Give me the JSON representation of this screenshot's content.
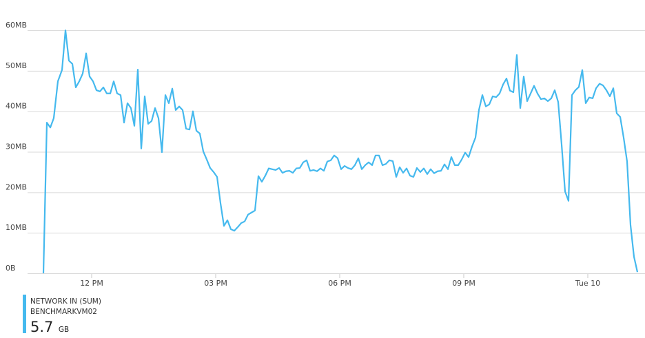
{
  "chart_data": {
    "type": "line",
    "xlim": [
      587,
      1523
    ],
    "ylim": [
      0,
      60
    ],
    "grid": true,
    "xticks": [
      {
        "value": 720,
        "label": "12 PM"
      },
      {
        "value": 900,
        "label": "03 PM"
      },
      {
        "value": 1080,
        "label": "06 PM"
      },
      {
        "value": 1260,
        "label": "09 PM"
      },
      {
        "value": 1440,
        "label": "Tue 10"
      }
    ],
    "yticks": [
      {
        "value": 0,
        "label": "0B"
      },
      {
        "value": 10,
        "label": "10MB"
      },
      {
        "value": 20,
        "label": "20MB"
      },
      {
        "value": 30,
        "label": "30MB"
      },
      {
        "value": 40,
        "label": "40MB"
      },
      {
        "value": 50,
        "label": "50MB"
      },
      {
        "value": 60,
        "label": "60MB"
      }
    ],
    "x": [
      650,
      655,
      660,
      665,
      671,
      677,
      682,
      687,
      692,
      697,
      702,
      707,
      712,
      717,
      722,
      727,
      732,
      737,
      742,
      747,
      752,
      757,
      762,
      767,
      772,
      777,
      782,
      787,
      792,
      797,
      802,
      807,
      812,
      817,
      822,
      827,
      832,
      837,
      842,
      847,
      852,
      857,
      862,
      867,
      872,
      877,
      882,
      887,
      892,
      897,
      902,
      907,
      912,
      917,
      922,
      927,
      932,
      937,
      942,
      947,
      952,
      957,
      962,
      967,
      972,
      977,
      982,
      987,
      992,
      997,
      1002,
      1007,
      1012,
      1017,
      1022,
      1027,
      1032,
      1037,
      1042,
      1047,
      1052,
      1057,
      1062,
      1067,
      1072,
      1077,
      1082,
      1087,
      1092,
      1097,
      1102,
      1107,
      1112,
      1117,
      1122,
      1127,
      1132,
      1137,
      1142,
      1147,
      1152,
      1157,
      1162,
      1167,
      1172,
      1177,
      1182,
      1187,
      1192,
      1197,
      1202,
      1207,
      1212,
      1217,
      1222,
      1227,
      1232,
      1237,
      1242,
      1247,
      1252,
      1257,
      1262,
      1267,
      1272,
      1277,
      1282,
      1287,
      1292,
      1297,
      1302,
      1307,
      1312,
      1317,
      1322,
      1327,
      1332,
      1337,
      1342,
      1347,
      1352,
      1357,
      1362,
      1367,
      1372,
      1377,
      1382,
      1387,
      1392,
      1397,
      1402,
      1407,
      1412,
      1417,
      1422,
      1427,
      1432,
      1437,
      1442,
      1447,
      1452,
      1457,
      1462,
      1467,
      1472,
      1477,
      1482,
      1487,
      1492,
      1497,
      1502,
      1507,
      1512
    ],
    "series": [
      {
        "name": "NETWORK IN (SUM)",
        "color": "#45b9ee",
        "values": [
          0,
          37.2,
          36,
          38.3,
          47.4,
          50.2,
          60,
          52.5,
          51.7,
          45.9,
          47.4,
          49.3,
          54.3,
          48.6,
          47.4,
          45.2,
          44.9,
          45.9,
          44.4,
          44.4,
          47.4,
          44.4,
          44,
          37.2,
          42,
          40.8,
          36.4,
          50.3,
          30.8,
          43.7,
          36.9,
          37.6,
          40.8,
          38.3,
          29.9,
          44,
          42,
          45.6,
          40.3,
          41.2,
          40.3,
          35.7,
          35.5,
          40,
          35.2,
          34.5,
          30.1,
          28.1,
          26,
          25,
          23.8,
          17.3,
          11.7,
          13.1,
          10.9,
          10.5,
          11.4,
          12.4,
          12.8,
          14.5,
          15,
          15.5,
          24,
          22.6,
          24.1,
          25.9,
          25.7,
          25.5,
          26,
          24.8,
          25.2,
          25.3,
          24.8,
          25.9,
          26,
          27.4,
          27.9,
          25.3,
          25.5,
          25.2,
          25.9,
          25.3,
          27.6,
          27.9,
          29.1,
          28.4,
          25.7,
          26.5,
          26,
          25.7,
          26.7,
          28.4,
          25.7,
          26.7,
          27.4,
          26.7,
          29.1,
          29.1,
          26.7,
          27,
          27.9,
          27.7,
          23.8,
          26.2,
          24.8,
          25.9,
          24.1,
          23.8,
          26,
          25,
          25.9,
          24.5,
          25.7,
          24.7,
          25.2,
          25.3,
          26.9,
          25.7,
          28.7,
          26.7,
          26.7,
          28.1,
          29.8,
          28.7,
          31.3,
          33.5,
          40.3,
          44,
          41.2,
          41.7,
          43.7,
          43.5,
          44.4,
          46.6,
          48.1,
          45.1,
          44.7,
          53.9,
          40.8,
          48.6,
          42.5,
          44.4,
          46.3,
          44.4,
          43,
          43.2,
          42.5,
          43.2,
          45.2,
          42.3,
          31.8,
          20.2,
          17.9,
          44,
          45.2,
          46,
          50.2,
          42,
          43.4,
          43.2,
          45.7,
          46.8,
          46.4,
          45.2,
          43.7,
          45.7,
          39.5,
          38.6,
          33.5,
          27.6,
          11.9,
          4.1,
          0.3
        ]
      }
    ],
    "subtitle": "BENCHMARKVM02",
    "total": {
      "value": 5.7,
      "unit": "GB"
    }
  }
}
